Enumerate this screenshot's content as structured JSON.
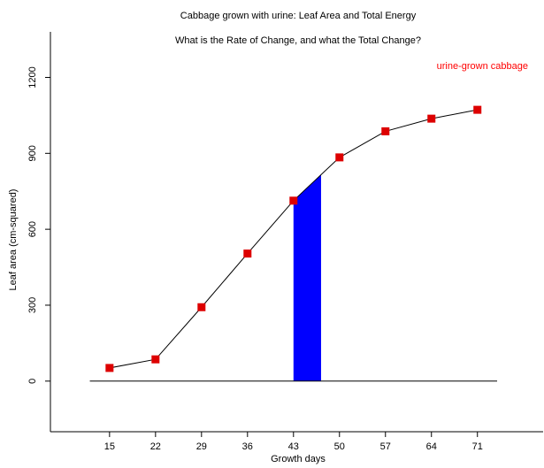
{
  "chart_data": {
    "type": "line",
    "title": "Cabbage grown with urine: Leaf Area and Total Energy",
    "subtitle": "What is the Rate of Change, and what the Total Change?",
    "xlabel": "Growth days",
    "ylabel": "Leaf area (cm-squared)",
    "x_ticks": [
      "15",
      "22",
      "29",
      "36",
      "43",
      "50",
      "57",
      "64",
      "71"
    ],
    "y_ticks": [
      "0",
      "300",
      "600",
      "900",
      "1200"
    ],
    "xlim": [
      6,
      81
    ],
    "ylim": [
      -200,
      1380
    ],
    "series": [
      {
        "name": "urine-grown cabbage",
        "color": "#dd0000",
        "marker": "square",
        "x": [
          15,
          22,
          29,
          36,
          43,
          50,
          57,
          64,
          71
        ],
        "y": [
          52,
          86,
          292,
          504,
          713,
          884,
          987,
          1037,
          1072
        ]
      }
    ],
    "baseline": {
      "y": 0,
      "x_from": 12,
      "x_to": 74
    },
    "shaded_area": {
      "x_from": 43,
      "x_to": 47.2,
      "color": "#0000ff"
    },
    "grid": false,
    "legend_position": "top-right"
  }
}
